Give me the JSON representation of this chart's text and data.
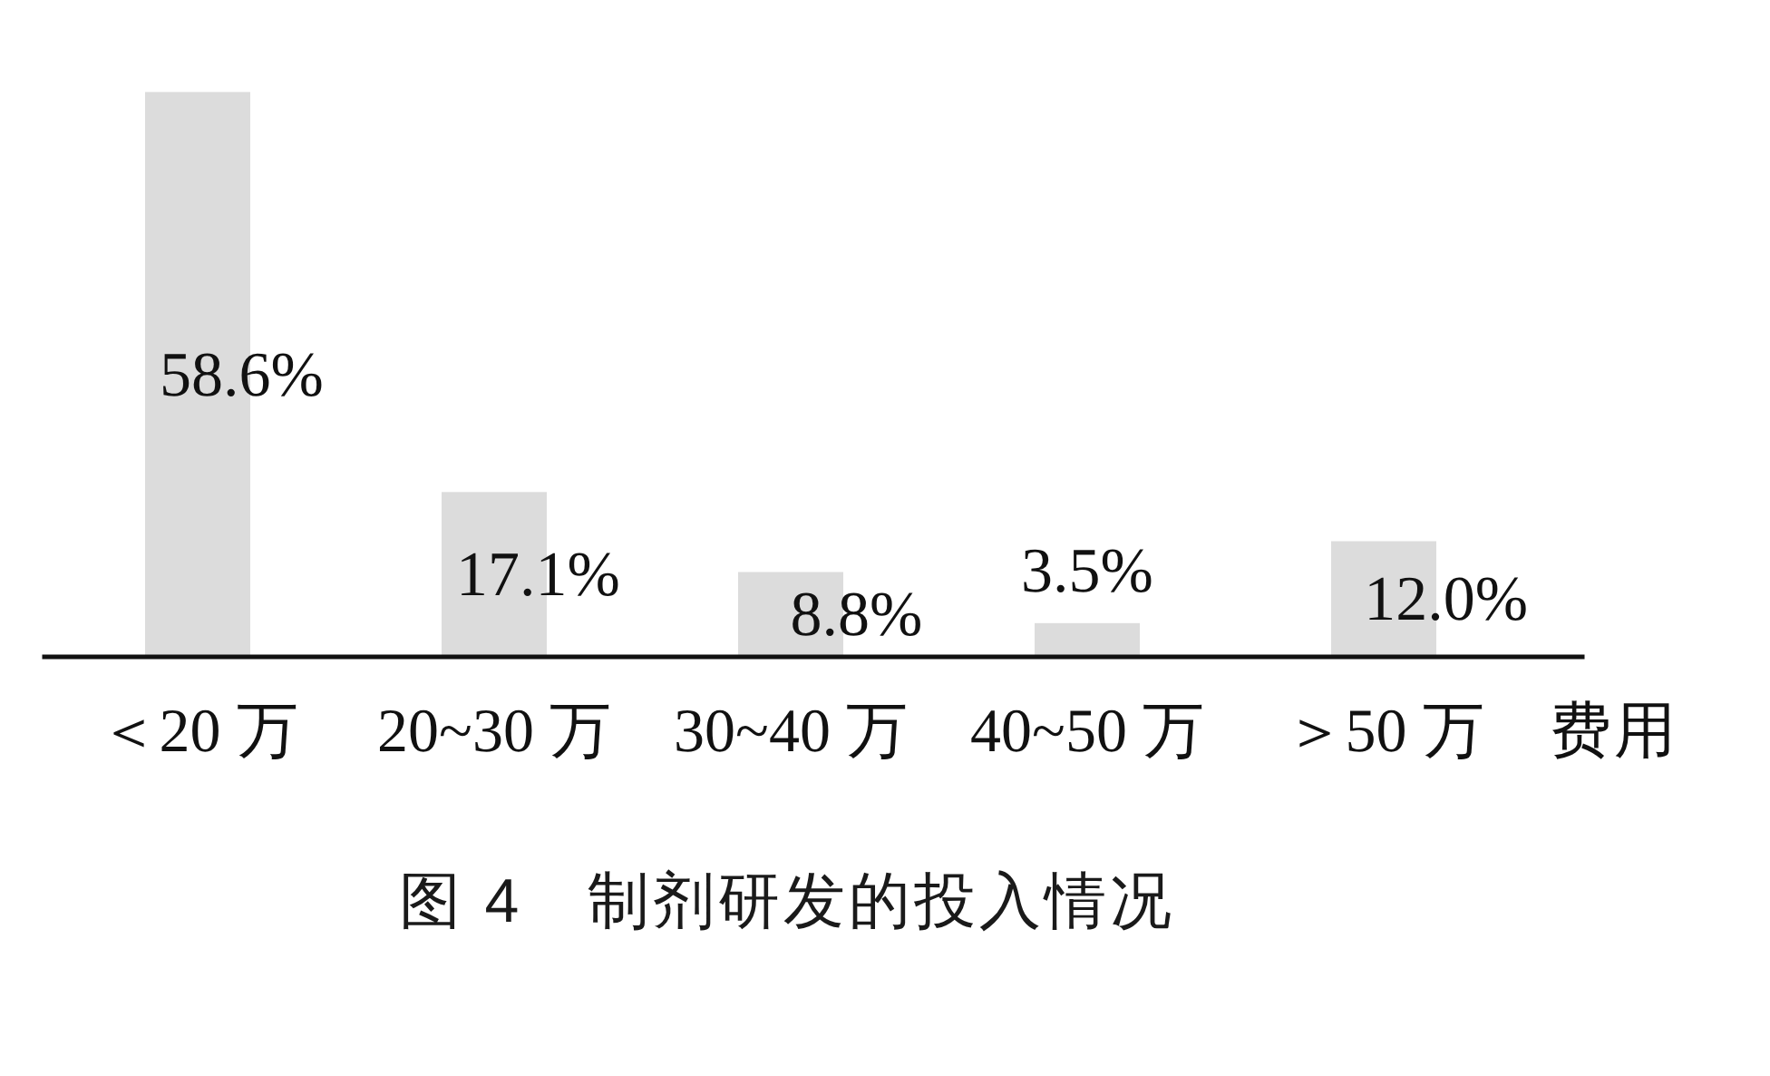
{
  "chart_data": {
    "type": "bar",
    "title": "图 4　制剂研发的投入情况",
    "xlabel": "费用",
    "categories": [
      "＜20 万",
      "20~30 万",
      "30~40 万",
      "40~50 万",
      "＞50 万"
    ],
    "values": [
      58.6,
      17.1,
      8.8,
      3.5,
      12.0
    ],
    "value_labels": [
      "58.6%",
      "17.1%",
      "8.8%",
      "3.5%",
      "12.0%"
    ],
    "color": "#dcdcdc"
  }
}
